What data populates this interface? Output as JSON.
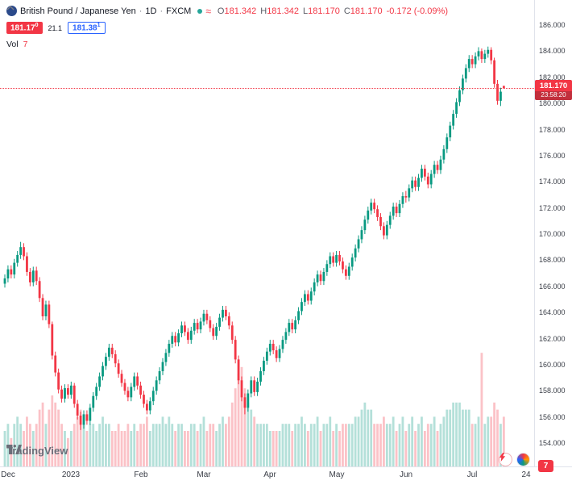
{
  "header": {
    "symbol_title": "British Pound / Japanese Yen",
    "separator": "·",
    "interval": "1D",
    "exchange": "FXCM",
    "ohlc": {
      "open_label": "O",
      "open": "181.342",
      "high_label": "H",
      "high": "181.342",
      "low_label": "L",
      "low": "181.170",
      "close_label": "C",
      "close": "181.170",
      "change": "-0.172 (-0.09%)"
    },
    "sell_price": "181.17",
    "sell_sup": "0",
    "spread": "21.1",
    "buy_price": "181.38",
    "buy_sup": "1",
    "vol_label": "Vol",
    "vol_value": "7"
  },
  "price_line": {
    "price": "181.170",
    "countdown": "23:58:20",
    "value": 181.17
  },
  "footer": {
    "logo_text": "TradingView"
  },
  "corner_badge": "7",
  "colors": {
    "up": "#089981",
    "down": "#f23645",
    "vol_up": "rgba(8,153,129,0.30)",
    "vol_down": "rgba(242,54,69,0.30)",
    "accent_blue": "#2962ff",
    "axis_line": "#e0e3eb"
  },
  "chart_data": {
    "type": "candlestick",
    "title": "British Pound / Japanese Yen · 1D · FXCM",
    "symbol": "GBP/JPY",
    "interval": "1D",
    "exchange": "FXCM",
    "legend_position": "top-left",
    "grid": false,
    "price_axis_range": [
      154,
      186
    ],
    "price_axis_labels": [
      "186.000",
      "184.000",
      "182.000",
      "180.000",
      "178.000",
      "176.000",
      "174.000",
      "172.000",
      "170.000",
      "168.000",
      "166.000",
      "164.000",
      "162.000",
      "160.000",
      "158.000",
      "156.000",
      "154.000"
    ],
    "time_ticks": [
      {
        "label": "Dec",
        "index": 1
      },
      {
        "label": "2023",
        "index": 21
      },
      {
        "label": "Feb",
        "index": 43
      },
      {
        "label": "Mar",
        "index": 63
      },
      {
        "label": "Apr",
        "index": 84
      },
      {
        "label": "May",
        "index": 105
      },
      {
        "label": "Jun",
        "index": 127
      },
      {
        "label": "Jul",
        "index": 148
      },
      {
        "label": "24",
        "index": 165
      }
    ],
    "current_price": 181.17,
    "countdown": "23:58:20",
    "last_bar": {
      "open": 181.342,
      "high": 181.342,
      "low": 181.17,
      "close": 181.17,
      "change": -0.172,
      "change_pct": -0.09
    },
    "volume_pane": true,
    "columns": [
      "open",
      "high",
      "low",
      "close",
      "volume"
    ],
    "candles": [
      [
        166.2,
        166.9,
        165.9,
        166.6,
        5
      ],
      [
        166.6,
        167.6,
        166.3,
        167.3,
        6
      ],
      [
        167.3,
        167.6,
        166.6,
        166.9,
        4
      ],
      [
        166.9,
        168.1,
        166.6,
        167.8,
        6
      ],
      [
        167.8,
        168.7,
        167.5,
        168.4,
        7
      ],
      [
        168.4,
        169.4,
        168.1,
        169.0,
        6
      ],
      [
        169.0,
        169.3,
        168.0,
        168.3,
        5
      ],
      [
        168.3,
        168.6,
        166.8,
        167.1,
        7
      ],
      [
        167.1,
        167.4,
        166.0,
        166.3,
        6
      ],
      [
        166.3,
        167.5,
        166.0,
        167.2,
        5
      ],
      [
        167.2,
        167.5,
        166.1,
        166.4,
        6
      ],
      [
        166.4,
        166.7,
        164.8,
        165.1,
        8
      ],
      [
        165.1,
        165.4,
        163.4,
        163.7,
        9
      ],
      [
        163.7,
        164.9,
        163.4,
        164.6,
        6
      ],
      [
        164.6,
        164.9,
        162.8,
        163.1,
        8
      ],
      [
        163.1,
        163.3,
        160.4,
        160.7,
        10
      ],
      [
        160.7,
        161.0,
        159.1,
        159.4,
        9
      ],
      [
        159.4,
        159.7,
        157.8,
        158.1,
        8
      ],
      [
        158.1,
        158.4,
        157.1,
        157.4,
        6
      ],
      [
        157.4,
        158.5,
        157.1,
        158.2,
        5
      ],
      [
        158.2,
        158.5,
        157.4,
        157.7,
        4
      ],
      [
        157.7,
        158.7,
        157.4,
        158.4,
        5
      ],
      [
        158.4,
        158.6,
        156.7,
        157.0,
        6
      ],
      [
        157.0,
        157.3,
        155.8,
        156.1,
        7
      ],
      [
        156.1,
        156.4,
        155.0,
        155.4,
        8
      ],
      [
        155.4,
        156.5,
        155.1,
        156.2,
        6
      ],
      [
        156.2,
        156.5,
        155.4,
        155.7,
        5
      ],
      [
        155.7,
        157.0,
        155.4,
        156.7,
        6
      ],
      [
        156.7,
        157.9,
        156.4,
        157.6,
        6
      ],
      [
        157.6,
        158.6,
        157.3,
        158.3,
        5
      ],
      [
        158.3,
        159.4,
        158.0,
        159.1,
        6
      ],
      [
        159.1,
        160.2,
        158.8,
        159.9,
        7
      ],
      [
        159.9,
        160.9,
        159.6,
        160.6,
        6
      ],
      [
        160.6,
        161.6,
        160.3,
        161.3,
        6
      ],
      [
        161.3,
        161.6,
        160.5,
        160.8,
        5
      ],
      [
        160.8,
        161.1,
        159.8,
        160.1,
        5
      ],
      [
        160.1,
        160.4,
        159.0,
        159.3,
        6
      ],
      [
        159.3,
        159.6,
        158.3,
        158.6,
        5
      ],
      [
        158.6,
        158.9,
        157.7,
        158.0,
        5
      ],
      [
        158.0,
        158.3,
        157.2,
        157.5,
        6
      ],
      [
        157.5,
        158.6,
        157.2,
        158.3,
        5
      ],
      [
        158.3,
        159.4,
        158.0,
        159.1,
        6
      ],
      [
        159.1,
        159.4,
        158.1,
        158.4,
        5
      ],
      [
        158.4,
        158.7,
        157.4,
        157.7,
        6
      ],
      [
        157.7,
        158.0,
        156.7,
        157.0,
        6
      ],
      [
        157.0,
        157.3,
        156.2,
        156.5,
        7
      ],
      [
        156.5,
        157.5,
        156.2,
        157.2,
        5
      ],
      [
        157.2,
        158.3,
        156.9,
        158.0,
        6
      ],
      [
        158.0,
        159.1,
        157.7,
        158.8,
        6
      ],
      [
        158.8,
        159.8,
        158.5,
        159.5,
        6
      ],
      [
        159.5,
        160.5,
        159.2,
        160.2,
        7
      ],
      [
        160.2,
        161.2,
        159.9,
        160.9,
        6
      ],
      [
        160.9,
        161.9,
        160.6,
        161.6,
        7
      ],
      [
        161.6,
        162.5,
        161.3,
        162.2,
        6
      ],
      [
        162.2,
        162.5,
        161.4,
        161.7,
        5
      ],
      [
        161.7,
        162.7,
        161.4,
        162.4,
        6
      ],
      [
        162.4,
        163.3,
        162.1,
        163.0,
        6
      ],
      [
        163.0,
        163.3,
        162.2,
        162.5,
        5
      ],
      [
        162.5,
        162.8,
        161.6,
        161.9,
        5
      ],
      [
        161.9,
        162.9,
        161.6,
        162.6,
        6
      ],
      [
        162.6,
        163.5,
        162.3,
        163.2,
        6
      ],
      [
        163.2,
        163.5,
        162.4,
        162.7,
        5
      ],
      [
        162.7,
        163.6,
        162.4,
        163.3,
        6
      ],
      [
        163.3,
        164.2,
        163.0,
        163.9,
        7
      ],
      [
        163.9,
        164.2,
        163.1,
        163.4,
        5
      ],
      [
        163.4,
        163.7,
        162.5,
        162.8,
        6
      ],
      [
        162.8,
        163.1,
        161.9,
        162.2,
        6
      ],
      [
        162.2,
        163.2,
        161.9,
        162.9,
        5
      ],
      [
        162.9,
        163.9,
        162.6,
        163.6,
        6
      ],
      [
        163.6,
        164.5,
        163.3,
        164.2,
        7
      ],
      [
        164.2,
        164.5,
        163.4,
        163.7,
        6
      ],
      [
        163.7,
        164.0,
        162.7,
        163.0,
        7
      ],
      [
        163.0,
        163.3,
        161.6,
        161.9,
        9
      ],
      [
        161.9,
        162.2,
        160.1,
        160.4,
        11
      ],
      [
        160.4,
        160.7,
        158.5,
        158.8,
        13
      ],
      [
        158.8,
        159.1,
        157.2,
        157.5,
        14
      ],
      [
        157.5,
        157.8,
        156.2,
        156.7,
        11
      ],
      [
        156.7,
        158.1,
        156.4,
        157.8,
        9
      ],
      [
        157.8,
        159.1,
        157.5,
        158.8,
        8
      ],
      [
        158.8,
        159.1,
        157.6,
        157.9,
        7
      ],
      [
        157.9,
        159.0,
        157.6,
        158.7,
        6
      ],
      [
        158.7,
        159.8,
        158.4,
        159.5,
        6
      ],
      [
        159.5,
        160.6,
        159.2,
        160.3,
        6
      ],
      [
        160.3,
        161.3,
        160.0,
        161.0,
        6
      ],
      [
        161.0,
        161.9,
        160.7,
        161.6,
        5
      ],
      [
        161.6,
        161.9,
        160.8,
        161.1,
        5
      ],
      [
        161.1,
        161.4,
        160.2,
        160.5,
        5
      ],
      [
        160.5,
        161.5,
        160.2,
        161.2,
        5
      ],
      [
        161.2,
        162.2,
        160.9,
        161.9,
        6
      ],
      [
        161.9,
        162.8,
        161.6,
        162.5,
        6
      ],
      [
        162.5,
        163.5,
        162.2,
        163.2,
        6
      ],
      [
        163.2,
        163.5,
        162.4,
        162.7,
        5
      ],
      [
        162.7,
        163.7,
        162.4,
        163.4,
        6
      ],
      [
        163.4,
        164.4,
        163.1,
        164.1,
        6
      ],
      [
        164.1,
        165.1,
        163.8,
        164.8,
        7
      ],
      [
        164.8,
        165.7,
        164.5,
        165.4,
        6
      ],
      [
        165.4,
        165.7,
        164.6,
        164.9,
        5
      ],
      [
        164.9,
        165.9,
        164.6,
        165.6,
        6
      ],
      [
        165.6,
        166.6,
        165.3,
        166.3,
        6
      ],
      [
        166.3,
        167.2,
        166.0,
        166.9,
        7
      ],
      [
        166.9,
        167.2,
        166.1,
        166.4,
        5
      ],
      [
        166.4,
        167.4,
        166.1,
        167.1,
        6
      ],
      [
        167.1,
        168.0,
        166.8,
        167.7,
        6
      ],
      [
        167.7,
        168.6,
        167.4,
        168.3,
        7
      ],
      [
        168.3,
        168.6,
        167.5,
        167.8,
        5
      ],
      [
        167.8,
        168.7,
        167.5,
        168.4,
        6
      ],
      [
        168.4,
        168.7,
        167.6,
        167.9,
        5
      ],
      [
        167.9,
        168.2,
        167.0,
        167.3,
        6
      ],
      [
        167.3,
        167.6,
        166.5,
        166.8,
        6
      ],
      [
        166.8,
        167.8,
        166.5,
        167.5,
        6
      ],
      [
        167.5,
        168.5,
        167.2,
        168.2,
        6
      ],
      [
        168.2,
        169.2,
        167.9,
        168.9,
        7
      ],
      [
        168.9,
        169.9,
        168.6,
        169.6,
        7
      ],
      [
        169.6,
        170.6,
        169.3,
        170.3,
        8
      ],
      [
        170.3,
        171.4,
        170.0,
        171.1,
        9
      ],
      [
        171.1,
        172.1,
        170.8,
        171.8,
        8
      ],
      [
        171.8,
        172.7,
        171.5,
        172.4,
        8
      ],
      [
        172.4,
        172.7,
        171.6,
        171.9,
        6
      ],
      [
        171.9,
        172.2,
        171.0,
        171.3,
        6
      ],
      [
        171.3,
        171.6,
        170.3,
        170.6,
        6
      ],
      [
        170.6,
        170.9,
        169.6,
        169.9,
        7
      ],
      [
        169.9,
        171.0,
        169.6,
        170.7,
        6
      ],
      [
        170.7,
        171.7,
        170.4,
        171.4,
        6
      ],
      [
        171.4,
        172.4,
        171.1,
        172.1,
        7
      ],
      [
        172.1,
        172.4,
        171.3,
        171.6,
        5
      ],
      [
        171.6,
        172.6,
        171.3,
        172.3,
        6
      ],
      [
        172.3,
        173.2,
        172.0,
        172.9,
        7
      ],
      [
        172.9,
        173.3,
        172.4,
        172.8,
        5
      ],
      [
        172.8,
        173.8,
        172.5,
        173.5,
        6
      ],
      [
        173.5,
        174.4,
        173.2,
        174.1,
        7
      ],
      [
        174.1,
        174.4,
        173.3,
        173.6,
        5
      ],
      [
        173.6,
        174.6,
        173.3,
        174.3,
        6
      ],
      [
        174.3,
        175.3,
        174.0,
        175.0,
        7
      ],
      [
        175.0,
        175.3,
        174.1,
        174.4,
        5
      ],
      [
        174.4,
        174.7,
        173.5,
        173.8,
        6
      ],
      [
        173.8,
        174.9,
        173.5,
        174.6,
        6
      ],
      [
        174.6,
        175.6,
        174.3,
        175.3,
        7
      ],
      [
        175.3,
        175.6,
        174.6,
        174.9,
        5
      ],
      [
        174.9,
        176.0,
        174.6,
        175.7,
        6
      ],
      [
        175.7,
        176.8,
        175.4,
        176.5,
        7
      ],
      [
        176.5,
        177.7,
        176.2,
        177.4,
        8
      ],
      [
        177.4,
        178.6,
        177.1,
        178.3,
        8
      ],
      [
        178.3,
        179.5,
        178.0,
        179.2,
        9
      ],
      [
        179.2,
        180.4,
        178.9,
        180.1,
        9
      ],
      [
        180.1,
        181.3,
        179.8,
        181.0,
        9
      ],
      [
        181.0,
        182.2,
        180.7,
        181.9,
        8
      ],
      [
        181.9,
        183.0,
        181.6,
        182.7,
        8
      ],
      [
        182.7,
        183.7,
        182.4,
        183.4,
        8
      ],
      [
        183.4,
        183.7,
        182.7,
        183.0,
        6
      ],
      [
        183.0,
        183.9,
        182.7,
        183.6,
        6
      ],
      [
        183.6,
        184.3,
        183.3,
        184.0,
        7
      ],
      [
        184.0,
        184.2,
        183.1,
        183.4,
        16
      ],
      [
        183.4,
        184.1,
        183.1,
        183.8,
        6
      ],
      [
        183.8,
        184.35,
        183.5,
        184.1,
        7
      ],
      [
        184.1,
        184.3,
        183.0,
        183.3,
        7
      ],
      [
        183.3,
        183.5,
        181.2,
        181.5,
        9
      ],
      [
        181.5,
        181.8,
        179.9,
        180.2,
        8
      ],
      [
        180.2,
        181.2,
        179.8,
        180.9,
        6
      ],
      [
        181.342,
        181.342,
        181.17,
        181.17,
        7
      ]
    ]
  }
}
